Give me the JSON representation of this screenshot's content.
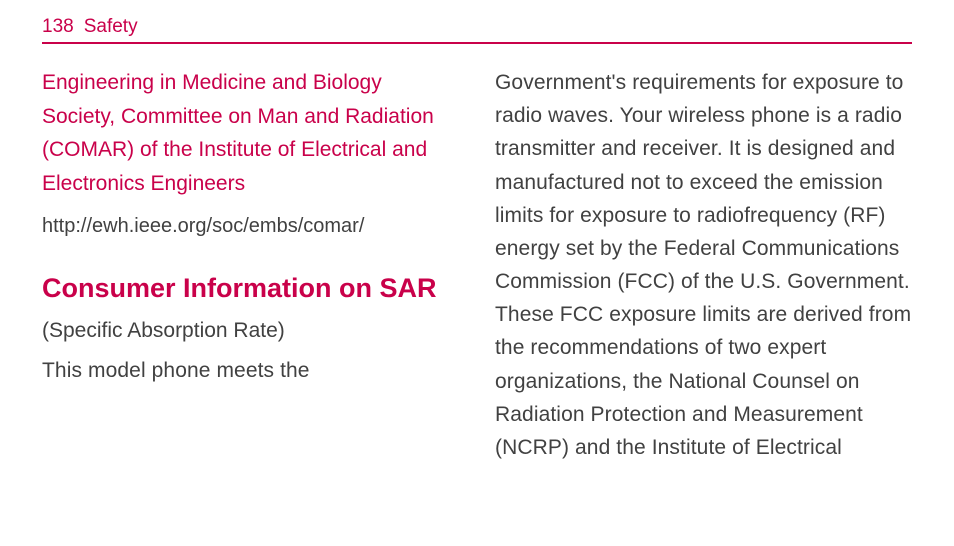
{
  "header": {
    "page_number": "138",
    "section_label": "Safety"
  },
  "left_column": {
    "org_heading": "Engineering in Medicine and Biology Society, Committee on Man and Radiation (COMAR) of the Institute of Electrical and Electronics Engineers",
    "org_url": "http://ewh.ieee.org/soc/embs/comar/",
    "section_title": "Consumer Information on SAR",
    "subtitle": "(Specific Absorption Rate)",
    "lead_text": "This model phone meets the"
  },
  "right_column": {
    "body": "Government's requirements for exposure to radio waves. Your wireless phone is a radio transmitter and receiver. It is designed and manufactured not to exceed the emission limits for exposure to radiofrequency (RF) energy set by the Federal Communications Commission (FCC) of the U.S. Government. These FCC exposure limits are derived from the recommendations of two expert organizations, the National Counsel on Radiation Protection and Measurement (NCRP) and the Institute of Electrical"
  },
  "colors": {
    "accent": "#c9014a",
    "text": "#414141",
    "background": "#ffffff"
  }
}
